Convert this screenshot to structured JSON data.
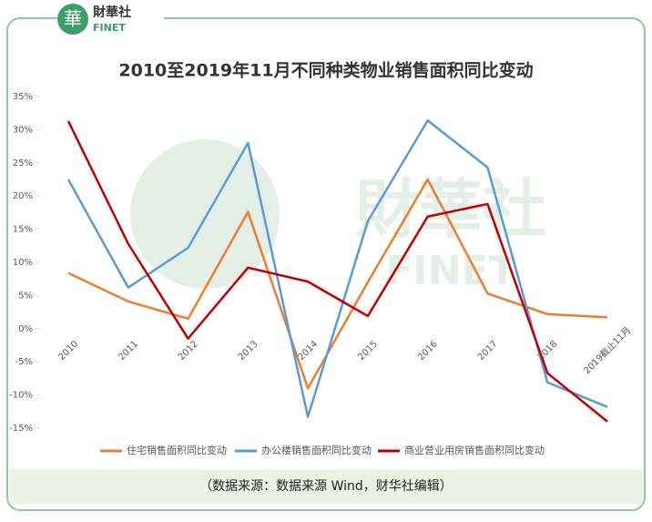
{
  "header": {
    "logo_mark": "華",
    "brand": "財華社",
    "brand_en": "FINET"
  },
  "watermark": {
    "cn": "財華社",
    "en": "FINET"
  },
  "chart_data": {
    "type": "line",
    "title": "2010至2019年11月不同种类物业销售面积同比变动",
    "categories": [
      "2010",
      "2011",
      "2012",
      "2013",
      "2014",
      "2015",
      "2016",
      "2017",
      "2018",
      "2019截止11月"
    ],
    "series": [
      {
        "name": "住宅销售面积同比变动",
        "color": "#ed7d31",
        "values": [
          8.4,
          4.1,
          1.5,
          17.6,
          -9,
          7,
          22.5,
          5.3,
          2.2,
          1.7
        ]
      },
      {
        "name": "办公楼销售面积同比变动",
        "color": "#5b9bd5",
        "values": [
          22.5,
          6.2,
          12.2,
          28,
          -13.3,
          16.2,
          31.4,
          24.3,
          -8.1,
          -11.8
        ]
      },
      {
        "name": "商业营业用房销售面积同比变动",
        "color": "#c00000",
        "values": [
          31.3,
          12.8,
          -1.5,
          9.2,
          7.1,
          1.9,
          16.9,
          18.8,
          -6.7,
          -14
        ]
      }
    ],
    "ylim": [
      -15,
      35
    ],
    "yticks": [
      {
        "value": -15,
        "label": "-15%"
      },
      {
        "value": -10,
        "label": "-10%"
      },
      {
        "value": -5,
        "label": "-5%"
      },
      {
        "value": 0,
        "label": "0%"
      },
      {
        "value": 5,
        "label": "5%"
      },
      {
        "value": 10,
        "label": "10%"
      },
      {
        "value": 15,
        "label": "15%"
      },
      {
        "value": 20,
        "label": "20%"
      },
      {
        "value": 25,
        "label": "25%"
      },
      {
        "value": 30,
        "label": "30%"
      },
      {
        "value": 35,
        "label": "35%"
      }
    ],
    "grid": false,
    "legend": "bottom"
  },
  "footer": {
    "source": "（数据来源：数据来源 Wind，财华社编辑）"
  }
}
